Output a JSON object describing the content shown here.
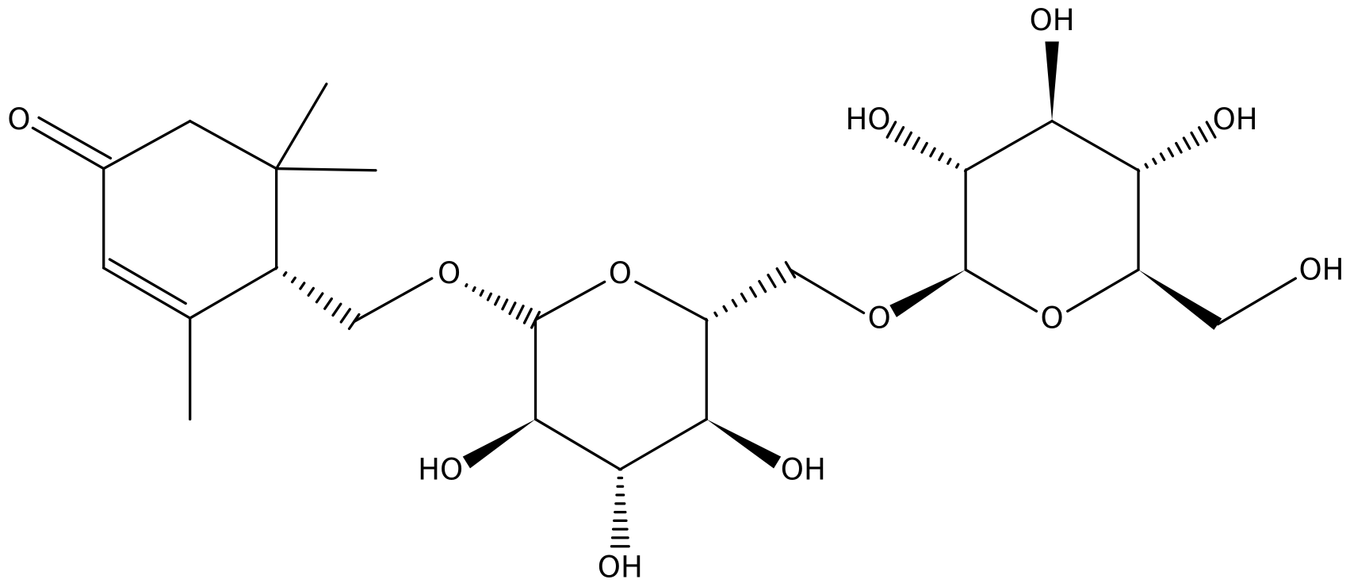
{
  "atoms": [
    {
      "label": "O"
    },
    {
      "label": "O"
    },
    {
      "label": "O"
    },
    {
      "label": "HO"
    },
    {
      "label": "OH"
    },
    {
      "label": "OH"
    },
    {
      "label": "O"
    },
    {
      "label": "O"
    },
    {
      "label": "OH"
    },
    {
      "label": "OH"
    },
    {
      "label": "OH"
    },
    {
      "label": "HO"
    }
  ]
}
